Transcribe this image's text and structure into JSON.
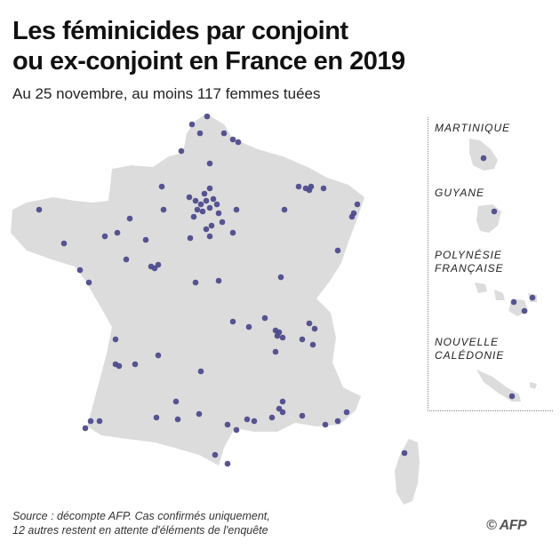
{
  "header": {
    "title_line1": "Les féminicides par conjoint",
    "title_line2": "ou ex-conjoint en France en 2019",
    "subtitle": "Au 25 novembre, au moins 117 femmes tuées"
  },
  "overseas": {
    "martinique": "MARTINIQUE",
    "guyane": "GUYANE",
    "polynesie_line1": "POLYNÉSIE",
    "polynesie_line2": "FRANÇAISE",
    "caledonie_line1": "NOUVELLE",
    "caledonie_line2": "CALÉDONIE"
  },
  "footer": {
    "source_line1": "Source : décompte AFP. Cas confirmés uniquement,",
    "source_line2": "12 autres restent en attente d'éléments de l'enquête",
    "credit": "© AFP"
  },
  "colors": {
    "land": "#dcdcdc",
    "dot": "#4d4b8c"
  }
}
